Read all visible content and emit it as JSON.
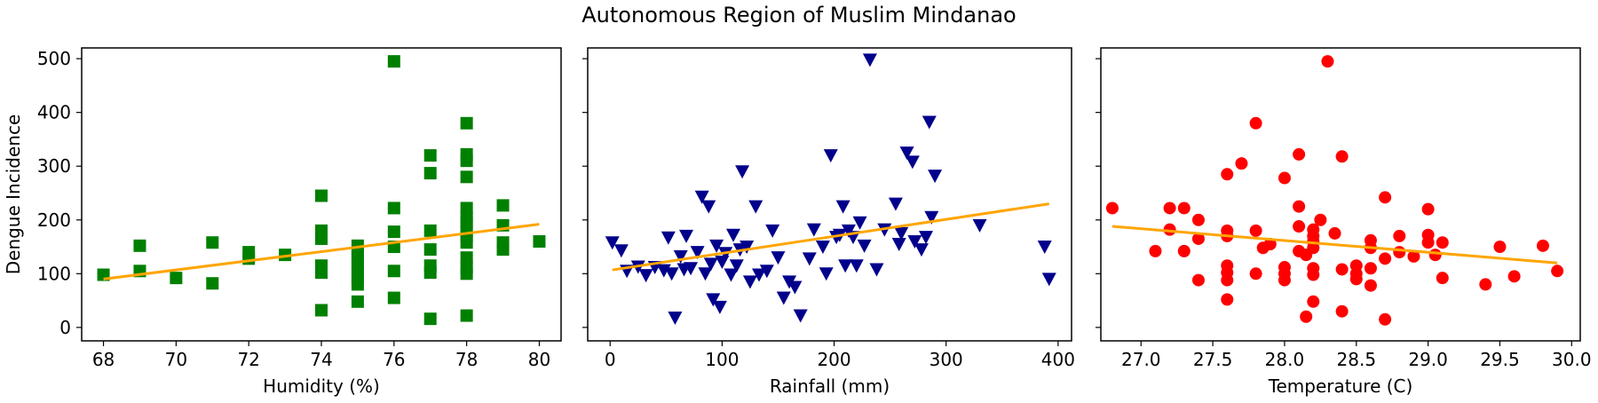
{
  "title": "Autonomous Region of Muslim Mindanao",
  "ylabel": "Dengue Incidence",
  "colors": {
    "trend": "#ffa500",
    "frame": "#000000"
  },
  "chart_data": [
    {
      "type": "scatter",
      "xlabel": "Humidity (%)",
      "ylabel": "Dengue Incidence",
      "xlim": [
        67.4,
        80.6
      ],
      "ylim": [
        -25,
        520
      ],
      "xticks": [
        68,
        70,
        72,
        74,
        76,
        78,
        80
      ],
      "yticks": [
        0,
        100,
        200,
        300,
        400,
        500
      ],
      "marker": "square",
      "color": "#008000",
      "points": [
        [
          68,
          98
        ],
        [
          69,
          152
        ],
        [
          69,
          105
        ],
        [
          70,
          92
        ],
        [
          71,
          158
        ],
        [
          71,
          82
        ],
        [
          72,
          140
        ],
        [
          72,
          128
        ],
        [
          73,
          135
        ],
        [
          74,
          245
        ],
        [
          74,
          180
        ],
        [
          74,
          165
        ],
        [
          74,
          115
        ],
        [
          74,
          102
        ],
        [
          74,
          32
        ],
        [
          75,
          152
        ],
        [
          75,
          140
        ],
        [
          75,
          130
        ],
        [
          75,
          118
        ],
        [
          75,
          105
        ],
        [
          75,
          92
        ],
        [
          75,
          80
        ],
        [
          75,
          48
        ],
        [
          76,
          495
        ],
        [
          76,
          222
        ],
        [
          76,
          178
        ],
        [
          76,
          150
        ],
        [
          76,
          105
        ],
        [
          76,
          55
        ],
        [
          77,
          320
        ],
        [
          77,
          287
        ],
        [
          77,
          180
        ],
        [
          77,
          145
        ],
        [
          77,
          115
        ],
        [
          77,
          102
        ],
        [
          77,
          16
        ],
        [
          78,
          380
        ],
        [
          78,
          322
        ],
        [
          78,
          310
        ],
        [
          78,
          280
        ],
        [
          78,
          222
        ],
        [
          78,
          205
        ],
        [
          78,
          195
        ],
        [
          78,
          180
        ],
        [
          78,
          170
        ],
        [
          78,
          158
        ],
        [
          78,
          130
        ],
        [
          78,
          112
        ],
        [
          78,
          100
        ],
        [
          78,
          22
        ],
        [
          79,
          227
        ],
        [
          79,
          190
        ],
        [
          79,
          158
        ],
        [
          79,
          145
        ],
        [
          80,
          160
        ]
      ],
      "trend": {
        "x": [
          68,
          80
        ],
        "y": [
          90,
          192
        ]
      }
    },
    {
      "type": "scatter",
      "xlabel": "Rainfall (mm)",
      "ylabel": "Dengue Incidence",
      "xlim": [
        -20,
        412
      ],
      "ylim": [
        -25,
        520
      ],
      "xticks": [
        0,
        100,
        200,
        300,
        400
      ],
      "yticks": [
        0,
        100,
        200,
        300,
        400,
        500
      ],
      "marker": "triangle-down",
      "color": "#00008b",
      "points": [
        [
          2,
          158
        ],
        [
          10,
          143
        ],
        [
          15,
          105
        ],
        [
          25,
          113
        ],
        [
          32,
          97
        ],
        [
          40,
          112
        ],
        [
          48,
          106
        ],
        [
          52,
          167
        ],
        [
          55,
          100
        ],
        [
          58,
          18
        ],
        [
          63,
          132
        ],
        [
          66,
          108
        ],
        [
          68,
          170
        ],
        [
          72,
          110
        ],
        [
          78,
          140
        ],
        [
          82,
          243
        ],
        [
          85,
          100
        ],
        [
          88,
          225
        ],
        [
          90,
          118
        ],
        [
          92,
          52
        ],
        [
          95,
          152
        ],
        [
          98,
          38
        ],
        [
          100,
          122
        ],
        [
          103,
          138
        ],
        [
          108,
          98
        ],
        [
          110,
          172
        ],
        [
          113,
          115
        ],
        [
          116,
          145
        ],
        [
          118,
          290
        ],
        [
          122,
          150
        ],
        [
          125,
          85
        ],
        [
          130,
          225
        ],
        [
          133,
          98
        ],
        [
          140,
          105
        ],
        [
          145,
          180
        ],
        [
          150,
          130
        ],
        [
          155,
          55
        ],
        [
          160,
          85
        ],
        [
          165,
          75
        ],
        [
          170,
          22
        ],
        [
          178,
          128
        ],
        [
          182,
          182
        ],
        [
          190,
          150
        ],
        [
          193,
          100
        ],
        [
          197,
          320
        ],
        [
          202,
          168
        ],
        [
          205,
          172
        ],
        [
          208,
          225
        ],
        [
          210,
          115
        ],
        [
          213,
          180
        ],
        [
          217,
          168
        ],
        [
          220,
          115
        ],
        [
          223,
          195
        ],
        [
          227,
          152
        ],
        [
          232,
          498
        ],
        [
          238,
          108
        ],
        [
          245,
          182
        ],
        [
          255,
          230
        ],
        [
          258,
          155
        ],
        [
          260,
          175
        ],
        [
          265,
          325
        ],
        [
          270,
          308
        ],
        [
          272,
          160
        ],
        [
          278,
          145
        ],
        [
          282,
          168
        ],
        [
          285,
          382
        ],
        [
          287,
          205
        ],
        [
          290,
          282
        ],
        [
          330,
          190
        ],
        [
          388,
          150
        ],
        [
          392,
          90
        ]
      ],
      "trend": {
        "x": [
          2,
          392
        ],
        "y": [
          107,
          230
        ]
      }
    },
    {
      "type": "scatter",
      "xlabel": "Temperature (C)",
      "ylabel": "Dengue Incidence",
      "xlim": [
        26.72,
        30.06
      ],
      "ylim": [
        -25,
        520
      ],
      "xticks": [
        27.0,
        27.5,
        28.0,
        28.5,
        29.0,
        29.5,
        30.0
      ],
      "yticks": [
        0,
        100,
        200,
        300,
        400,
        500
      ],
      "marker": "circle",
      "color": "#ff0000",
      "points": [
        [
          26.8,
          222
        ],
        [
          27.1,
          142
        ],
        [
          27.2,
          222
        ],
        [
          27.2,
          182
        ],
        [
          27.3,
          222
        ],
        [
          27.3,
          142
        ],
        [
          27.4,
          200
        ],
        [
          27.4,
          165
        ],
        [
          27.4,
          88
        ],
        [
          27.6,
          285
        ],
        [
          27.6,
          180
        ],
        [
          27.6,
          170
        ],
        [
          27.6,
          115
        ],
        [
          27.6,
          102
        ],
        [
          27.6,
          88
        ],
        [
          27.6,
          52
        ],
        [
          27.7,
          305
        ],
        [
          27.8,
          380
        ],
        [
          27.8,
          180
        ],
        [
          27.8,
          100
        ],
        [
          27.85,
          148
        ],
        [
          27.9,
          155
        ],
        [
          28.0,
          278
        ],
        [
          28.0,
          112
        ],
        [
          28.0,
          100
        ],
        [
          28.0,
          88
        ],
        [
          28.1,
          322
        ],
        [
          28.1,
          225
        ],
        [
          28.1,
          188
        ],
        [
          28.1,
          142
        ],
        [
          28.15,
          135
        ],
        [
          28.15,
          20
        ],
        [
          28.2,
          182
        ],
        [
          28.2,
          170
        ],
        [
          28.2,
          160
        ],
        [
          28.2,
          148
        ],
        [
          28.2,
          110
        ],
        [
          28.2,
          98
        ],
        [
          28.2,
          48
        ],
        [
          28.25,
          200
        ],
        [
          28.3,
          495
        ],
        [
          28.35,
          175
        ],
        [
          28.4,
          318
        ],
        [
          28.4,
          108
        ],
        [
          28.4,
          30
        ],
        [
          28.5,
          115
        ],
        [
          28.5,
          100
        ],
        [
          28.5,
          90
        ],
        [
          28.6,
          162
        ],
        [
          28.6,
          148
        ],
        [
          28.6,
          110
        ],
        [
          28.6,
          78
        ],
        [
          28.7,
          242
        ],
        [
          28.7,
          128
        ],
        [
          28.7,
          15
        ],
        [
          28.8,
          170
        ],
        [
          28.8,
          140
        ],
        [
          28.9,
          132
        ],
        [
          29.0,
          220
        ],
        [
          29.0,
          172
        ],
        [
          29.0,
          158
        ],
        [
          29.05,
          135
        ],
        [
          29.1,
          158
        ],
        [
          29.1,
          92
        ],
        [
          29.4,
          80
        ],
        [
          29.5,
          150
        ],
        [
          29.6,
          95
        ],
        [
          29.8,
          152
        ],
        [
          29.9,
          105
        ]
      ],
      "trend": {
        "x": [
          26.8,
          29.9
        ],
        "y": [
          188,
          120
        ]
      }
    }
  ]
}
